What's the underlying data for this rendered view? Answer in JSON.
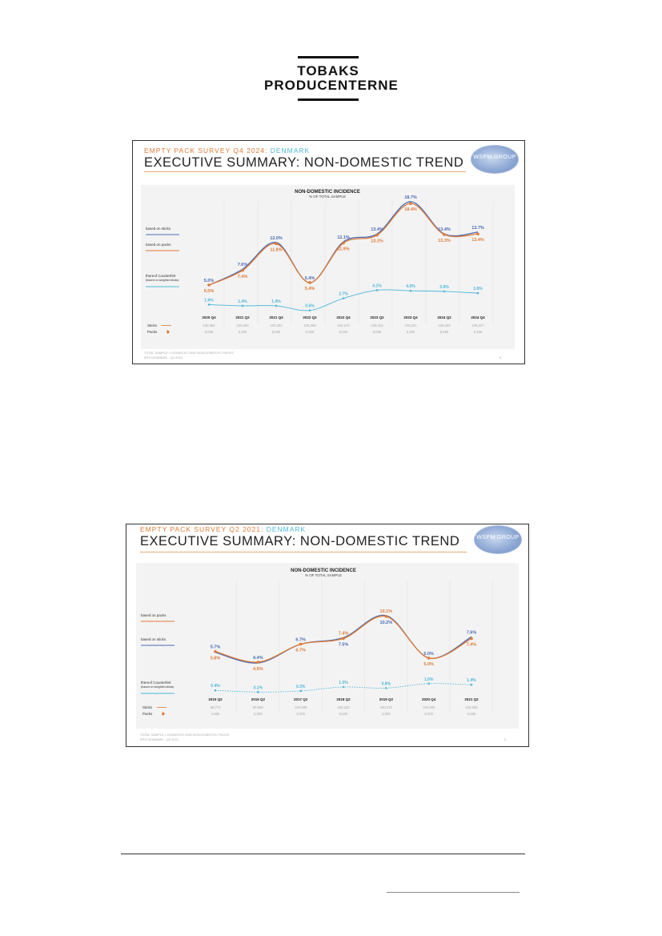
{
  "logo": {
    "line1": "TOBAKS",
    "line2": "PRODUCENTERNE"
  },
  "slides": [
    {
      "survey_title": "EMPTY PACK SURVEY Q4 2024: ",
      "country": "DENMARK",
      "main_title": "EXECUTIVE SUMMARY: NON-DOMESTIC TREND",
      "logo_text": "WSPM GROUP",
      "footer_line1": "TOTAL SAMPLE = DOMESTIC AND NON-DOMESTIC PACKS",
      "footer_line2": "EPS DENMARK - Q4 2024",
      "page_number": "5",
      "colors": {
        "sticks": "#4a6bb5",
        "packs": "#e07a36",
        "counterfeit": "#4db8d8"
      },
      "chart_data": {
        "type": "line",
        "title": "NON-DOMESTIC INCIDENCE",
        "subtitle": "% OF TOTAL SAMPLE",
        "categories": [
          "2020 Q4",
          "2021 Q2",
          "2021 Q4",
          "2022 Q2",
          "2022 Q4",
          "2023 Q2",
          "2023 Q4",
          "2024 Q2",
          "2024 Q4"
        ],
        "series": [
          {
            "name": "based on sticks",
            "values": [
              5.0,
              7.6,
              12.0,
              5.4,
              12.1,
              13.4,
              18.7,
              13.4,
              13.7
            ],
            "labels": [
              "5.0%",
              "7.6%",
              "12.0%",
              "5.4%",
              "12.1%",
              "13.4%",
              "18.7%",
              "13.4%",
              "13.7%"
            ]
          },
          {
            "name": "based on packs",
            "values": [
              5.0,
              7.4,
              11.8,
              5.4,
              11.9,
              13.2,
              18.4,
              13.3,
              13.4
            ],
            "labels": [
              "5.0%",
              "7.4%",
              "11.8%",
              "5.4%",
              "11.9%",
              "13.2%",
              "18.4%",
              "13.3%",
              "13.4%"
            ]
          },
          {
            "name": "thereof Counterfeit",
            "note": "(based on weighted sticks)",
            "values": [
              1.6,
              1.4,
              1.4,
              0.6,
              2.7,
              4.1,
              4.0,
              3.9,
              3.6
            ],
            "labels": [
              "1.6%",
              "1.4%",
              "1.4%",
              "0.6%",
              "2.7%",
              "4.1%",
              "4.0%",
              "3.9%",
              "3.6%"
            ]
          }
        ],
        "legend_order": [
          "based on sticks",
          "based on packs",
          "thereof Counterfeit"
        ],
        "base_rows": [
          {
            "label": "Sticks",
            "values": [
              "100,094",
              "100,260",
              "100,302",
              "100,258",
              "100,170",
              "100,315",
              "100,221",
              "109,193",
              "109,227"
            ]
          },
          {
            "label": "Packs",
            "values": [
              "5,000",
              "5,000",
              "5,000",
              "5,000",
              "5,000",
              "5,000",
              "5,000",
              "5,450",
              "5,450"
            ]
          }
        ]
      }
    },
    {
      "survey_title": "EMPTY PACK SURVEY Q2 2021: ",
      "country": "DENMARK",
      "main_title": "EXECUTIVE SUMMARY: NON-DOMESTIC TREND",
      "logo_text": "WSPM GROUP",
      "footer_line1": "TOTAL SAMPLE = DOMESTIC AND NON-DOMESTIC PACKS",
      "footer_line2": "EPS DENMARK - Q2 2021",
      "page_number": "5",
      "colors": {
        "sticks": "#4a6bb5",
        "packs": "#e07a36",
        "counterfeit": "#4db8d8"
      },
      "chart_data": {
        "type": "line",
        "title": "NON-DOMESTIC INCIDENCE",
        "subtitle": "% OF TOTAL SAMPLE",
        "categories": [
          "2015 Q2",
          "2016 Q2",
          "2017 Q2",
          "2018 Q2",
          "2019 Q2",
          "2020 Q4",
          "2021 Q2"
        ],
        "series": [
          {
            "name": "based on packs",
            "values": [
              5.8,
              4.5,
              6.7,
              7.4,
              10.1,
              5.0,
              7.4
            ],
            "labels": [
              "5.8%",
              "4.5%",
              "6.7%",
              "7.4%",
              "10.1%",
              "5.0%",
              "7.4%"
            ]
          },
          {
            "name": "based on sticks",
            "values": [
              5.7,
              4.4,
              6.7,
              7.5,
              10.2,
              5.0,
              7.6
            ],
            "labels": [
              "5.7%",
              "4.4%",
              "6.7%",
              "7.5%",
              "10.2%",
              "5.0%",
              "7.6%"
            ]
          },
          {
            "name": "thereof Counterfeit",
            "note": "(based on weighted sticks)",
            "values": [
              0.4,
              0.1,
              0.3,
              1.0,
              0.8,
              1.6,
              1.4
            ],
            "labels": [
              "0.4%",
              "0.1%",
              "0.3%",
              "1.0%",
              "0.8%",
              "1.6%",
              "1.4%"
            ]
          }
        ],
        "legend_order": [
          "based on packs",
          "based on sticks",
          "thereof Counterfeit"
        ],
        "base_rows": [
          {
            "label": "Sticks",
            "values": [
              "99,773",
              "99,959",
              "100,089",
              "100,232",
              "100,075",
              "100,094",
              "100,260"
            ]
          },
          {
            "label": "Packs",
            "values": [
              "4,990",
              "5,000",
              "5,000",
              "5,000",
              "5,000",
              "5,000",
              "5,000"
            ]
          }
        ]
      }
    }
  ]
}
